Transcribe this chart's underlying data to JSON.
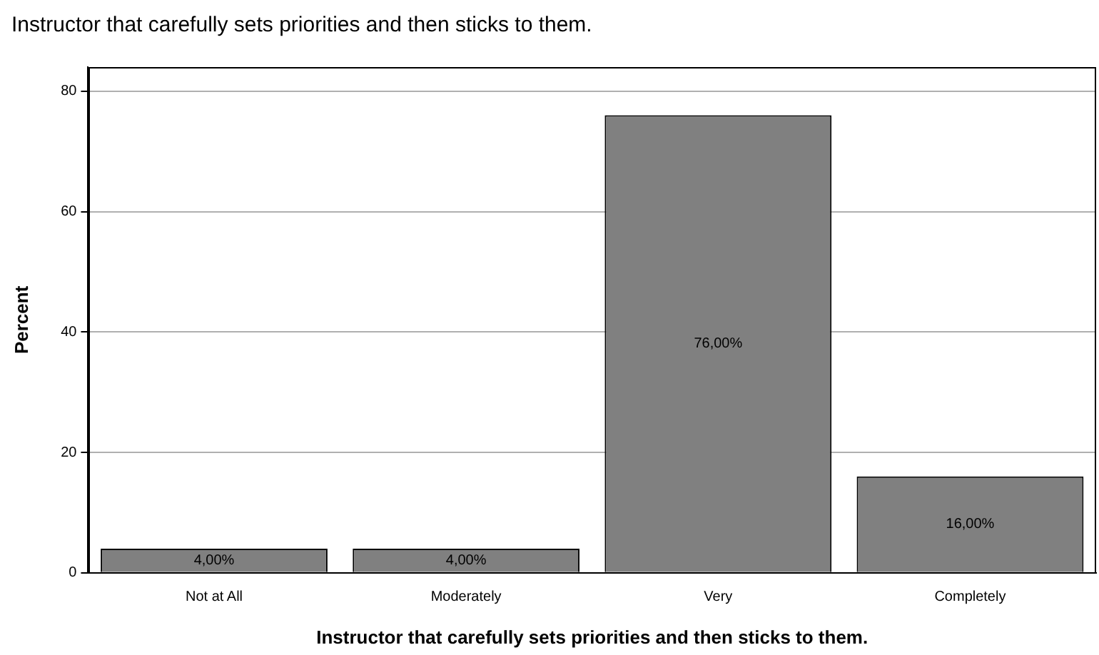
{
  "chart_data": {
    "type": "bar",
    "title": "Instructor that carefully sets priorities and then sticks to them.",
    "xlabel": "Instructor that carefully sets priorities and then sticks to them.",
    "ylabel": "Percent",
    "categories": [
      "Not at All",
      "Moderately",
      "Very",
      "Completely"
    ],
    "values": [
      4,
      4,
      76,
      16
    ],
    "value_labels": [
      "4,00%",
      "4,00%",
      "76,00%",
      "16,00%"
    ],
    "color": "#808080",
    "ylim": [
      0,
      84
    ],
    "yticks": [
      0,
      20,
      40,
      60,
      80
    ],
    "grid": "y",
    "legend": false
  }
}
